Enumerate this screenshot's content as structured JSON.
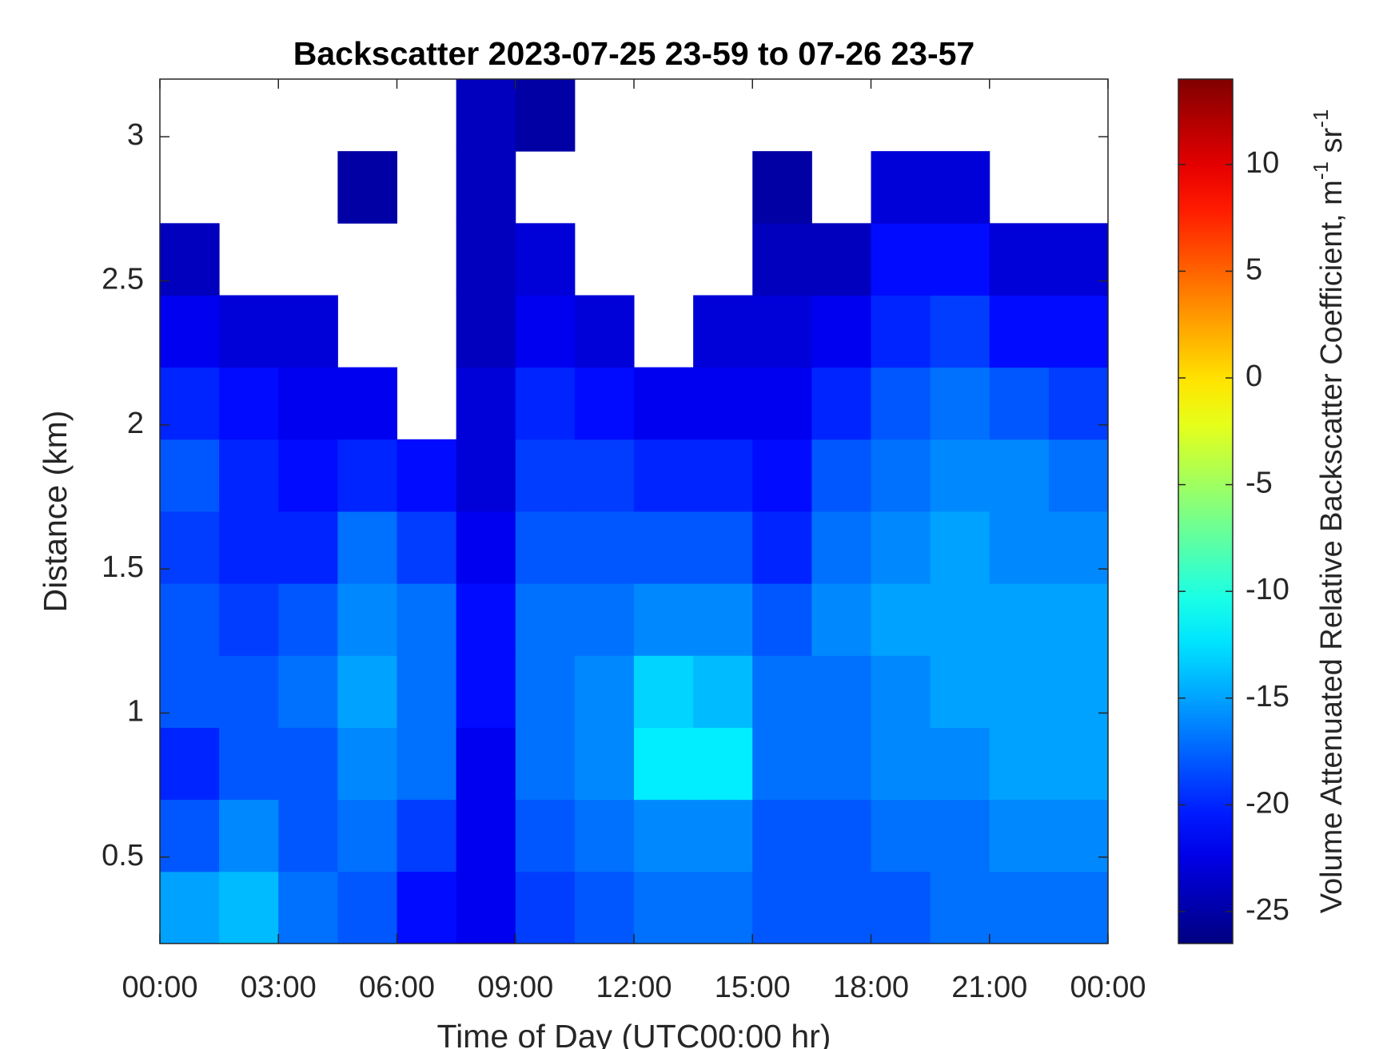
{
  "chart_data": {
    "type": "heatmap",
    "title": "Backscatter 2023-07-25 23-59 to 07-26 23-57",
    "x_label": "Time of Day (UTC00:00 hr)",
    "y_label": "Distance (km)",
    "colorbar_label": [
      "Volume Attenuated Relative Backscatter Coefficient, m",
      "-1",
      " sr",
      "-1"
    ],
    "colormap": "jet",
    "xlim": [
      0,
      24
    ],
    "xticks": [
      {
        "value": 0,
        "label": "00:00"
      },
      {
        "value": 3,
        "label": "03:00"
      },
      {
        "value": 6,
        "label": "06:00"
      },
      {
        "value": 9,
        "label": "09:00"
      },
      {
        "value": 12,
        "label": "12:00"
      },
      {
        "value": 15,
        "label": "15:00"
      },
      {
        "value": 18,
        "label": "18:00"
      },
      {
        "value": 21,
        "label": "21:00"
      },
      {
        "value": 24,
        "label": "00:00"
      }
    ],
    "ylim": [
      0.2,
      3.2
    ],
    "yticks": [
      0.5,
      1,
      1.5,
      2,
      2.5,
      3
    ],
    "clim": [
      -26.5,
      14
    ],
    "cticks": [
      -25,
      -20,
      -15,
      -10,
      -5,
      0,
      5,
      10
    ],
    "x": [
      0.75,
      2.25,
      3.75,
      5.25,
      6.75,
      8.25,
      9.75,
      11.25,
      12.75,
      14.25,
      15.75,
      17.25,
      18.75,
      20.25,
      21.75,
      23.25
    ],
    "y": [
      0.325,
      0.575,
      0.825,
      1.075,
      1.325,
      1.575,
      1.825,
      2.075,
      2.325,
      2.575,
      2.825,
      3.075
    ],
    "z": [
      [
        -15,
        -14,
        -17,
        -18,
        -21,
        -22,
        -19,
        -18,
        -17,
        -17,
        -18,
        -18,
        -18,
        -17,
        -17,
        -17
      ],
      [
        -18,
        -16,
        -18,
        -17,
        -19,
        -22,
        -18,
        -17,
        -16,
        -16,
        -18,
        -18,
        -17,
        -17,
        -16,
        -16
      ],
      [
        -20,
        -18,
        -18,
        -16,
        -17,
        -22,
        -17,
        -16,
        -12,
        -12,
        -17,
        -17,
        -16,
        -16,
        -15,
        -15
      ],
      [
        -18,
        -18,
        -17,
        -15,
        -17,
        -21,
        -17,
        -16,
        -13,
        -14,
        -17,
        -17,
        -16,
        -15,
        -15,
        -15
      ],
      [
        -18,
        -19,
        -18,
        -16,
        -17,
        -21,
        -17,
        -17,
        -16,
        -16,
        -18,
        -16,
        -15,
        -15,
        -15,
        -15
      ],
      [
        -19,
        -20,
        -20,
        -17,
        -19,
        -22,
        -18,
        -18,
        -18,
        -18,
        -20,
        -17,
        -16,
        -15,
        -16,
        -16
      ],
      [
        -18,
        -20,
        -21,
        -20,
        -21,
        -23,
        -19,
        -19,
        -20,
        -20,
        -21,
        -18,
        -17,
        -16,
        -16,
        -17
      ],
      [
        -20,
        -21,
        -22,
        -22,
        null,
        -23,
        -20,
        -21,
        -22,
        -22,
        -22,
        -20,
        -18,
        -17,
        -18,
        -19
      ],
      [
        -22,
        -23,
        -23,
        null,
        null,
        -24,
        -22,
        -23,
        null,
        -23,
        -23,
        -22,
        -20,
        -19,
        -21,
        -21
      ],
      [
        -24,
        null,
        null,
        null,
        null,
        -24,
        -23,
        null,
        null,
        null,
        -24,
        -24,
        -21,
        -21,
        -23,
        -23
      ],
      [
        null,
        null,
        null,
        -25,
        null,
        -24,
        null,
        null,
        null,
        null,
        -25,
        null,
        -23,
        -23,
        null,
        null
      ],
      [
        null,
        null,
        null,
        null,
        null,
        -24,
        -25,
        null,
        null,
        null,
        null,
        null,
        null,
        null,
        null,
        null
      ]
    ]
  }
}
